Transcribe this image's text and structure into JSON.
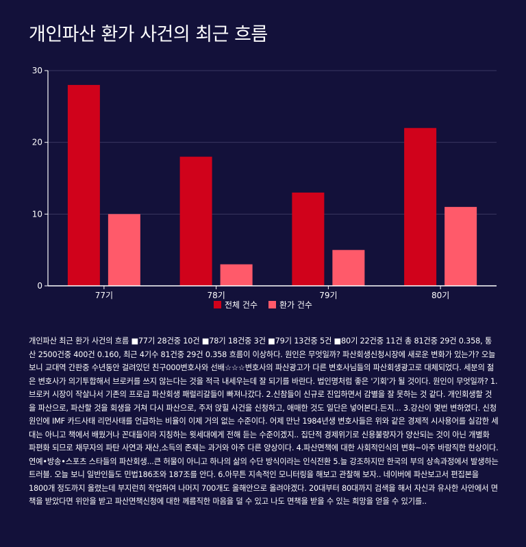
{
  "title": "개인파산 환가 사건의 최근 흐름",
  "colors": {
    "background": "#13113a",
    "series_total": "#d0021b",
    "series_liquidation": "#ff5a6a",
    "grid": "#3a3762",
    "axis": "#ffffff",
    "text": "#ffffff"
  },
  "chart_data": {
    "type": "bar",
    "title": "개인파산 환가 사건의 최근 흐름",
    "categories": [
      "77기",
      "78기",
      "79기",
      "80기"
    ],
    "series": [
      {
        "name": "전체 건수",
        "values": [
          28,
          18,
          13,
          22
        ]
      },
      {
        "name": "환가 건수",
        "values": [
          10,
          3,
          5,
          11
        ]
      }
    ],
    "ylim": [
      0,
      30
    ],
    "yticks": [
      0,
      10,
      20,
      30
    ],
    "xlabel": "",
    "ylabel": "",
    "grid": true,
    "legend_position": "bottom-center"
  },
  "description": "개인파산 최근 환가 사건의 흐름 ■77기 28건중 10건 ■78기 18건중 3건 ■79기 13건중 5건 ■80기 22건중 11건 총 81건중 29건 0.358, 통산 2500건중 400건 0.160, 최근 4기수 81건중 29건 0.358 흐름이 이상하다. 원인은 무엇일까? 파산회생신청시장에 새로운 변화가 있는가? 오늘 보니 교대역 간판중 수년동안 걸려있던 친구000변호사와 선배☆☆☆변호사의 파산광고가 다른 변호사님들의 파산회생광고로 대체되었다. 세분의 젊은 변호사가 의기투합해서 브로커를 쓰지 않는다는 것을 적극 내세우는데 잘 되기를 바란다. 법인명처럼 좋은 '기회'가 될 것이다. 원인이 무엇일까? 1.브로커 시장이 작살나서 기존의 프로급 파산회생 패럴리갈들이 빠져나갔다. 2.신참들이 신규로 진입하면서 감별을 잘 못하는 것 같다. 개인회생할 것을 파산으로, 파산할 것을 회생을 거쳐 다시 파산으로, 주저 앉힐 사건을 신청하고, 애매한 것도 일단은 넣어본다.든지... 3.강산이 몇번 변하였다. 신청원인에 IMF 카드사태 리먼사태를 언급하는 비율이 이제 거의 없는 수준이다. 어제 만난 1984년생 변호사들은 위와 같은 경제적 시사용어를 실감한 세대는 아니고 책에서 배웠거나 꼰대들이라 지칭하는 윗세대에게 전해 듣는 수준이겠지.. 집단적 경제위기로 신용불량자가 양산되는 것이 아닌 개별화 파편화 되므로 채무자의 파탄 사연과 재산,소득의 존재는 과거와 아주 다른 양상이다. 4.파산면책에 대한 사회적인식의 변화~아주 바람직한 현상이다. 연예•방송•스포츠 스타들의 파산회생...큰 허물이 아니고 하나의 삶의 수단 방식이라는 인식전환 5.늘 강조하지만 한국의 부의 상속과정에서 발생하는 트러블. 오늘 보니 일반인들도 민법186조와 187조를 안다. 6.아무튼 지속적인 모니터링을 해보고 관찰해 보자.. 네이버에 파산보고서 편집본을 1800개 정도까지 올렸는데 부지런히 작업하여 나머지 700개도 올해안으로 올려야겠다. 20대부터 80대까지 검색을 해서 자신과 유사한 사안에서 면책을 받았다면 위안을 받고 파산면책신청에 대한 께름직한 마음을 덜 수 있고 나도 면책을 받을 수 있는 희망을 얻을 수 있기를.."
}
